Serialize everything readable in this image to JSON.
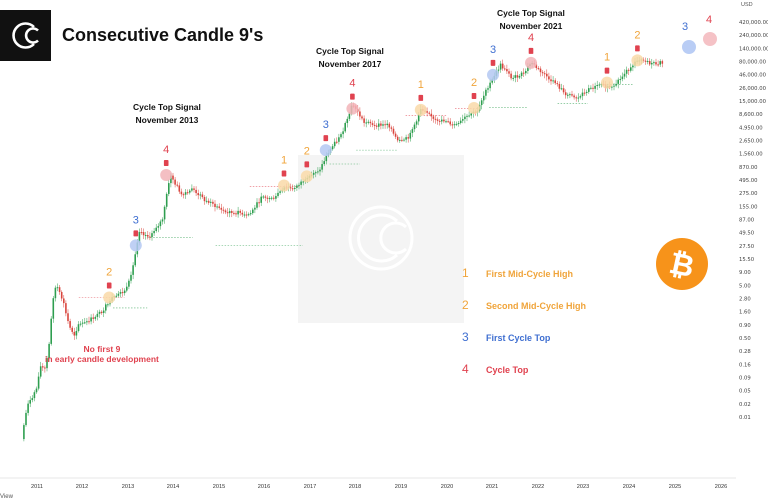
{
  "header": {
    "title": "Consecutive Candle 9's",
    "logo_glyph": "C"
  },
  "legend": [
    {
      "number": "1",
      "label": "First Mid-Cycle High",
      "color": "#f0a43a"
    },
    {
      "number": "2",
      "label": "Second Mid-Cycle High",
      "color": "#f0a43a"
    },
    {
      "number": "3",
      "label": "First Cycle Top",
      "color": "#3f6fd1"
    },
    {
      "number": "4",
      "label": "Cycle Top",
      "color": "#e0424f"
    }
  ],
  "annotations": {
    "signal_2013": {
      "line1": "Cycle Top Signal",
      "line2": "November 2013"
    },
    "signal_2017": {
      "line1": "Cycle Top Signal",
      "line2": "November 2017"
    },
    "signal_2021": {
      "line1": "Cycle Top Signal",
      "line2": "November 2021"
    },
    "no_first_9": {
      "line1": "No first 9",
      "line2": "in early candle development"
    }
  },
  "future_markers": [
    {
      "number": "3",
      "color": "#3f6fd1"
    },
    {
      "number": "4",
      "color": "#e0424f"
    }
  ],
  "footer_label": "View",
  "chart_data": {
    "type": "line",
    "scale": "log",
    "y_unit": "USD",
    "y_ticks": [
      "420,000.00",
      "240,000.00",
      "140,000.00",
      "80,000.00",
      "46,000.00",
      "26,000.00",
      "15,000.00",
      "8,600.00",
      "4,950.00",
      "2,650.00",
      "1,560.00",
      "870.00",
      "495.00",
      "275.00",
      "155.00",
      "87.00",
      "49.50",
      "27.50",
      "15.50",
      "9.00",
      "5.00",
      "2.80",
      "1.60",
      "0.90",
      "0.50",
      "0.28",
      "0.16",
      "0.09",
      "0.05",
      "0.02",
      "0.01"
    ],
    "x_ticks": [
      "2011",
      "2012",
      "2013",
      "2014",
      "2015",
      "2016",
      "2017",
      "2018",
      "2019",
      "2020",
      "2021",
      "2022",
      "2023",
      "2024",
      "2025",
      "2026"
    ],
    "series": [
      {
        "x": [
          "2010-09",
          "2010-10",
          "2010-11",
          "2010-12",
          "2011-01",
          "2011-02",
          "2011-03",
          "2011-04",
          "2011-05",
          "2011-06",
          "2011-07",
          "2011-08",
          "2011-09",
          "2011-10",
          "2011-11",
          "2011-12",
          "2012-03",
          "2012-06",
          "2012-09",
          "2012-12",
          "2013-02",
          "2013-04",
          "2013-06",
          "2013-08",
          "2013-10",
          "2013-12",
          "2014-03",
          "2014-06",
          "2014-09",
          "2014-12",
          "2015-03",
          "2015-06",
          "2015-09",
          "2015-12",
          "2016-03",
          "2016-06",
          "2016-09",
          "2016-12",
          "2017-03",
          "2017-06",
          "2017-09",
          "2017-12",
          "2018-03",
          "2018-06",
          "2018-09",
          "2018-12",
          "2019-03",
          "2019-06",
          "2019-09",
          "2019-12",
          "2020-03",
          "2020-06",
          "2020-09",
          "2020-12",
          "2021-03",
          "2021-06",
          "2021-09",
          "2021-11",
          "2022-02",
          "2022-05",
          "2022-08",
          "2022-11",
          "2023-02",
          "2023-05",
          "2023-08",
          "2023-11",
          "2024-02",
          "2024-04",
          "2024-07",
          "2024-10"
        ],
        "y": [
          0.06,
          0.15,
          0.25,
          0.3,
          0.4,
          0.9,
          0.8,
          1.5,
          8,
          18,
          14,
          9,
          5,
          3.2,
          2.5,
          4.2,
          4.9,
          6.5,
          12,
          13.5,
          30,
          120,
          100,
          125,
          200,
          1000,
          500,
          600,
          400,
          320,
          250,
          250,
          235,
          430,
          420,
          650,
          610,
          960,
          1100,
          2500,
          4300,
          14000,
          7000,
          6300,
          6500,
          3700,
          4100,
          11000,
          8300,
          7200,
          6400,
          9100,
          10800,
          29000,
          58000,
          35000,
          43000,
          64000,
          43000,
          31000,
          20000,
          16500,
          23000,
          27000,
          26000,
          37000,
          62000,
          66000,
          61000,
          63000
        ]
      }
    ],
    "markers": [
      {
        "label": "2",
        "date": "2012-08",
        "value": 11,
        "color": "#f0a43a"
      },
      {
        "label": "3",
        "date": "2013-03",
        "value": 75,
        "color": "#3f6fd1"
      },
      {
        "label": "4",
        "date": "2013-11",
        "value": 1000,
        "color": "#e0424f"
      },
      {
        "label": "1",
        "date": "2016-06",
        "value": 680,
        "color": "#f0a43a"
      },
      {
        "label": "2",
        "date": "2016-12",
        "value": 950,
        "color": "#f0a43a"
      },
      {
        "label": "3",
        "date": "2017-05",
        "value": 2500,
        "color": "#3f6fd1"
      },
      {
        "label": "4",
        "date": "2017-12",
        "value": 11500,
        "color": "#e0424f"
      },
      {
        "label": "1",
        "date": "2019-06",
        "value": 11000,
        "color": "#f0a43a"
      },
      {
        "label": "2",
        "date": "2020-08",
        "value": 11800,
        "color": "#f0a43a"
      },
      {
        "label": "3",
        "date": "2021-01",
        "value": 40000,
        "color": "#3f6fd1"
      },
      {
        "label": "4",
        "date": "2021-11",
        "value": 62000,
        "color": "#e0424f"
      },
      {
        "label": "1",
        "date": "2023-07",
        "value": 30000,
        "color": "#f0a43a"
      },
      {
        "label": "2",
        "date": "2024-03",
        "value": 68000,
        "color": "#f0a43a"
      }
    ]
  }
}
